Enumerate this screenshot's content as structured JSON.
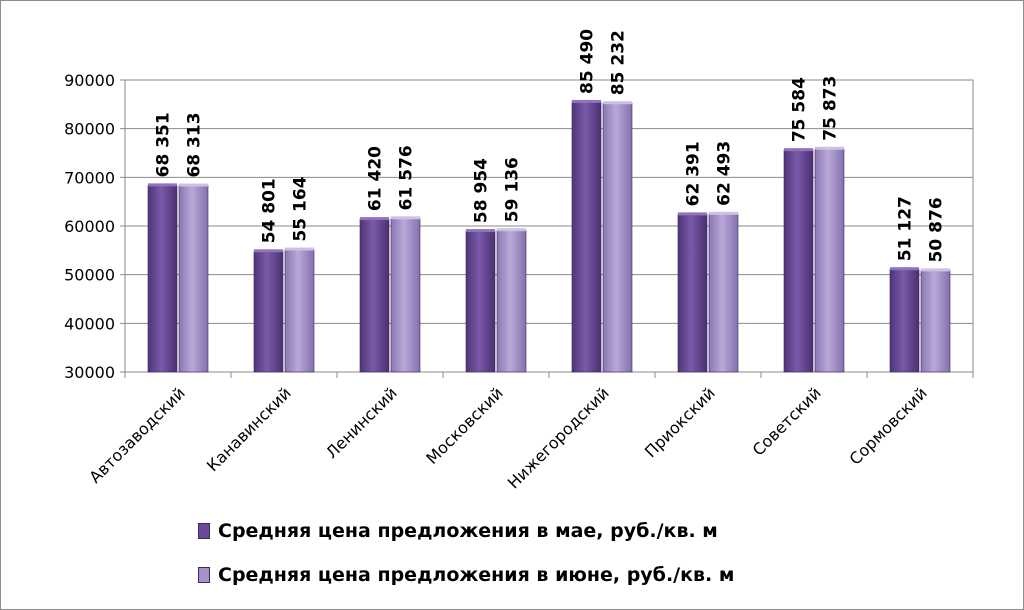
{
  "chart_data": {
    "type": "bar",
    "categories": [
      "Автозаводский",
      "Канавинский",
      "Ленинский",
      "Московский",
      "Нижегородский",
      "Приокский",
      "Советский",
      "Сормовский"
    ],
    "series": [
      {
        "name": "Средняя цена предложения в мае, руб./кв. м",
        "values": [
          68351,
          54801,
          61420,
          58954,
          85490,
          62391,
          75584,
          51127
        ],
        "labels": [
          "68 351",
          "54 801",
          "61 420",
          "58 954",
          "85 490",
          "62 391",
          "75 584",
          "51 127"
        ],
        "color": "#6a4a9a"
      },
      {
        "name": "Средняя цена предложения в июне, руб./кв. м",
        "values": [
          68313,
          55164,
          61576,
          59136,
          85232,
          62493,
          75873,
          50876
        ],
        "labels": [
          "68 313",
          "55 164",
          "61 576",
          "59 136",
          "85 232",
          "62 493",
          "75 873",
          "50 876"
        ],
        "color": "#a592c8"
      }
    ],
    "yticks": [
      "30000",
      "40000",
      "50000",
      "60000",
      "70000",
      "80000",
      "90000"
    ],
    "ylim": [
      30000,
      90000
    ],
    "grid": true,
    "legend_position": "bottom"
  },
  "legend": {
    "items": [
      {
        "label": "Средняя цена предложения в мае, руб./кв. м",
        "color": "#6a4a9a"
      },
      {
        "label": "Средняя цена предложения в июне, руб./кв. м",
        "color": "#a592c8"
      }
    ]
  }
}
